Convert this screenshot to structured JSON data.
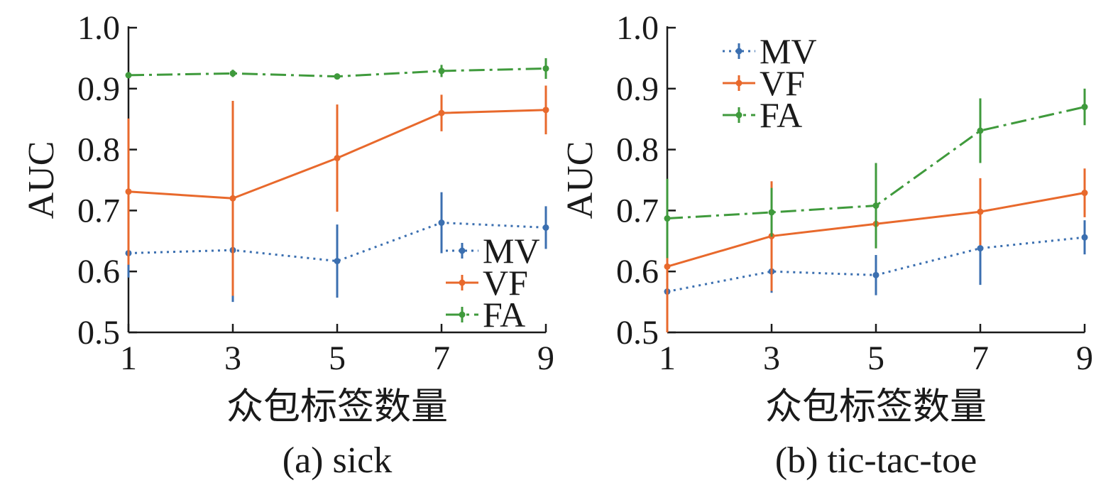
{
  "chart_data": [
    {
      "type": "line",
      "caption": "(a) sick",
      "xlabel": "众包标签数量",
      "ylabel": "AUC",
      "x": [
        1,
        3,
        5,
        7,
        9
      ],
      "xticks": [
        "1",
        "3",
        "5",
        "7",
        "9"
      ],
      "ylim": [
        0.5,
        1.0
      ],
      "yticks": [
        "0.5",
        "0.6",
        "0.7",
        "0.8",
        "0.9",
        "1.0"
      ],
      "legend_position": "bottom-right",
      "series": [
        {
          "name": "MV",
          "color": "#3b6fb0",
          "style": "dotted",
          "values": [
            0.63,
            0.635,
            0.617,
            0.68,
            0.672
          ],
          "err": [
            0.04,
            0.085,
            0.06,
            0.05,
            0.035
          ]
        },
        {
          "name": "VF",
          "color": "#e8692c",
          "style": "solid",
          "values": [
            0.731,
            0.72,
            0.786,
            0.86,
            0.865
          ],
          "err": [
            0.12,
            0.16,
            0.088,
            0.03,
            0.04
          ]
        },
        {
          "name": "FA",
          "color": "#3f9a3c",
          "style": "dashdot",
          "values": [
            0.922,
            0.925,
            0.92,
            0.929,
            0.933
          ],
          "err": [
            0.004,
            0.006,
            0.004,
            0.01,
            0.017
          ]
        }
      ]
    },
    {
      "type": "line",
      "caption": "(b) tic-tac-toe",
      "xlabel": "众包标签数量",
      "ylabel": "AUC",
      "x": [
        1,
        3,
        5,
        7,
        9
      ],
      "xticks": [
        "1",
        "3",
        "5",
        "7",
        "9"
      ],
      "ylim": [
        0.5,
        1.0
      ],
      "yticks": [
        "0.5",
        "0.6",
        "0.7",
        "0.8",
        "0.9",
        "1.0"
      ],
      "legend_position": "top-left",
      "series": [
        {
          "name": "MV",
          "color": "#3b6fb0",
          "style": "dotted",
          "values": [
            0.567,
            0.6,
            0.594,
            0.638,
            0.656
          ],
          "err": [
            0.07,
            0.035,
            0.033,
            0.06,
            0.028
          ]
        },
        {
          "name": "VF",
          "color": "#e8692c",
          "style": "solid",
          "values": [
            0.608,
            0.658,
            0.678,
            0.698,
            0.729
          ],
          "err": [
            0.11,
            0.09,
            0.04,
            0.055,
            0.04
          ]
        },
        {
          "name": "FA",
          "color": "#3f9a3c",
          "style": "dashdot",
          "values": [
            0.687,
            0.697,
            0.708,
            0.831,
            0.87
          ],
          "err": [
            0.065,
            0.04,
            0.07,
            0.053,
            0.03
          ]
        }
      ]
    }
  ]
}
